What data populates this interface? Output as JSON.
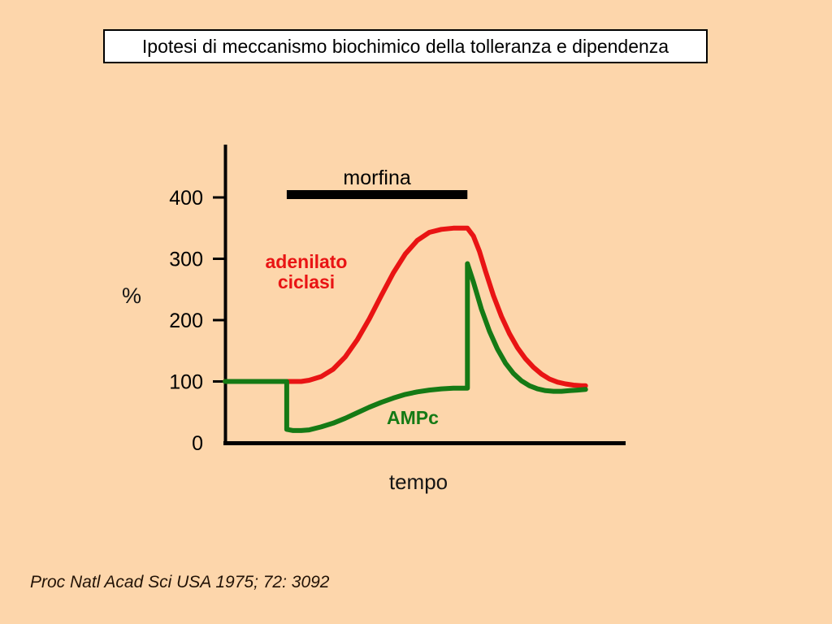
{
  "slide": {
    "title": "Ipotesi di meccanismo biochimico della tolleranza e dipendenza",
    "citation": "Proc Natl Acad Sci USA 1975; 72: 3092",
    "background_color": "#FDD6AB"
  },
  "chart_data": {
    "type": "line",
    "title": "",
    "xlabel": "tempo",
    "ylabel": "%",
    "xlim": [
      0,
      100
    ],
    "ylim": [
      0,
      480
    ],
    "yticks": [
      0,
      100,
      200,
      300,
      400
    ],
    "grid": false,
    "axis_color": "#000000",
    "annotations": {
      "morphine_bar": {
        "label": "morfina",
        "t_start": 15.4,
        "t_end": 60.5,
        "color": "#000000"
      }
    },
    "series": [
      {
        "name": "adenilato ciclasi",
        "color": "#E91414",
        "label_line1": "adenilato",
        "label_line2": "ciclasi",
        "points": [
          [
            0,
            100
          ],
          [
            15.4,
            100
          ],
          [
            19,
            100
          ],
          [
            21,
            102
          ],
          [
            24,
            108
          ],
          [
            27,
            120
          ],
          [
            30,
            140
          ],
          [
            33,
            168
          ],
          [
            36,
            202
          ],
          [
            39,
            240
          ],
          [
            42,
            277
          ],
          [
            45,
            308
          ],
          [
            48,
            330
          ],
          [
            51,
            343
          ],
          [
            54,
            348
          ],
          [
            57,
            350
          ],
          [
            60.5,
            350
          ],
          [
            62,
            337
          ],
          [
            63.5,
            312
          ],
          [
            65,
            280
          ],
          [
            67,
            240
          ],
          [
            69,
            206
          ],
          [
            71,
            178
          ],
          [
            73,
            155
          ],
          [
            75,
            137
          ],
          [
            77,
            123
          ],
          [
            79,
            112
          ],
          [
            81,
            104
          ],
          [
            83,
            99
          ],
          [
            85,
            96
          ],
          [
            87,
            94
          ],
          [
            89,
            93
          ],
          [
            90,
            93
          ]
        ]
      },
      {
        "name": "AMPc",
        "color": "#157A15",
        "points": [
          [
            0,
            100
          ],
          [
            15.4,
            100
          ],
          [
            15.4,
            22
          ],
          [
            17,
            20
          ],
          [
            19,
            20
          ],
          [
            21,
            21
          ],
          [
            24,
            26
          ],
          [
            27,
            32
          ],
          [
            30,
            40
          ],
          [
            33,
            49
          ],
          [
            36,
            58
          ],
          [
            39,
            66
          ],
          [
            42,
            73
          ],
          [
            45,
            79
          ],
          [
            48,
            83
          ],
          [
            51,
            86
          ],
          [
            54,
            88
          ],
          [
            57,
            89
          ],
          [
            60.5,
            89
          ],
          [
            60.5,
            292
          ],
          [
            62,
            262
          ],
          [
            64,
            218
          ],
          [
            66,
            182
          ],
          [
            68,
            153
          ],
          [
            70,
            130
          ],
          [
            72,
            113
          ],
          [
            74,
            101
          ],
          [
            76,
            93
          ],
          [
            78,
            88
          ],
          [
            80,
            85
          ],
          [
            82,
            84
          ],
          [
            84,
            84
          ],
          [
            86,
            85
          ],
          [
            88,
            86
          ],
          [
            90,
            87
          ]
        ]
      }
    ]
  }
}
